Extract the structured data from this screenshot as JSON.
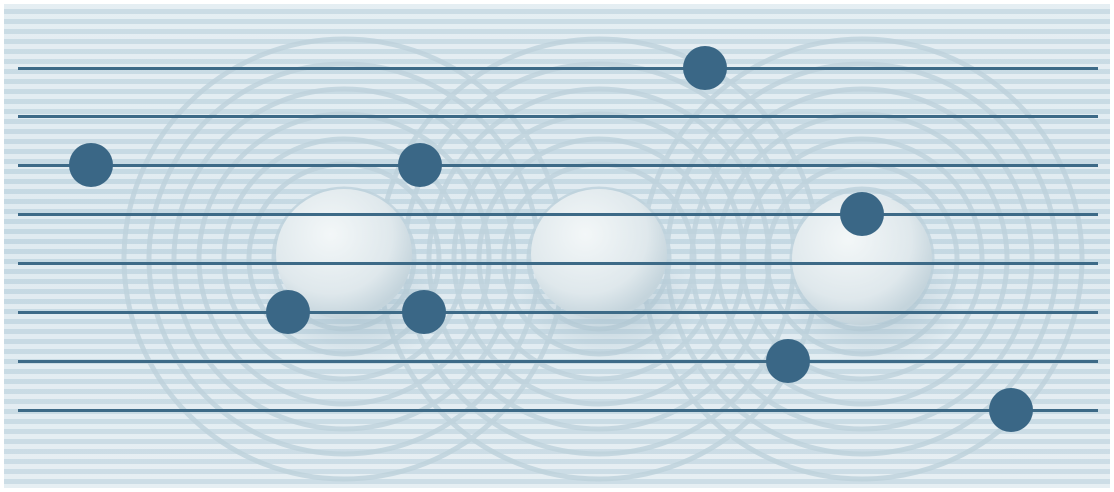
{
  "colors": {
    "track": "#3d6a87",
    "thumb": "#3a6786",
    "background": "#d7e5ec"
  },
  "background": {
    "icon": "zen-garden-stones-image"
  },
  "sliders": [
    {
      "value": 0.636
    },
    {
      "value": null
    },
    {
      "value": 0.068
    },
    {
      "value": 0.372
    },
    {
      "value": 0.781
    },
    {
      "value": null
    },
    {
      "value": 0.25
    },
    {
      "value": 0.376
    },
    {
      "value": 0.713
    },
    {
      "value": 0.92
    }
  ]
}
